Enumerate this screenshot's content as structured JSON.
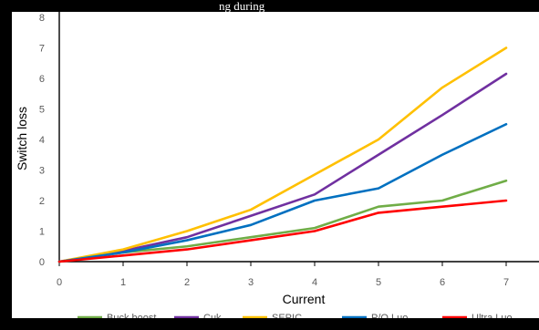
{
  "page": {
    "top_caption_fragment": "ng during"
  },
  "colors": {
    "axis": "#000000",
    "tick_text": "#595959",
    "label_text": "#000000"
  },
  "chart_data": {
    "type": "line",
    "title": "",
    "xlabel": "Current",
    "ylabel": "Switch loss",
    "x": [
      0,
      1,
      2,
      3,
      4,
      5,
      6,
      7
    ],
    "xticks": [
      "0",
      "1",
      "2",
      "3",
      "4",
      "5",
      "6",
      "7"
    ],
    "yticks": [
      "0",
      "1",
      "2",
      "3",
      "4",
      "5",
      "6",
      "7",
      "8"
    ],
    "xlim": [
      0,
      7
    ],
    "ylim": [
      0,
      8
    ],
    "grid": false,
    "legend_position": "bottom",
    "series": [
      {
        "name": "Buck boost",
        "color": "#70ad47",
        "values": [
          0,
          0.3,
          0.5,
          0.8,
          1.1,
          1.8,
          2.0,
          2.65
        ]
      },
      {
        "name": "Cuk",
        "color": "#7030a0",
        "values": [
          0,
          0.35,
          0.8,
          1.5,
          2.2,
          3.5,
          4.8,
          6.15
        ]
      },
      {
        "name": "SEPIC",
        "color": "#ffc000",
        "values": [
          0,
          0.4,
          1.0,
          1.7,
          2.85,
          4.0,
          5.7,
          7.0
        ]
      },
      {
        "name": "P/O Luo",
        "color": "#0070c0",
        "values": [
          0,
          0.3,
          0.7,
          1.2,
          2.0,
          2.4,
          3.5,
          4.5
        ]
      },
      {
        "name": "Ultra Luo",
        "color": "#ff0000",
        "values": [
          0,
          0.2,
          0.4,
          0.7,
          1.0,
          1.6,
          1.8,
          2.0
        ]
      }
    ]
  }
}
